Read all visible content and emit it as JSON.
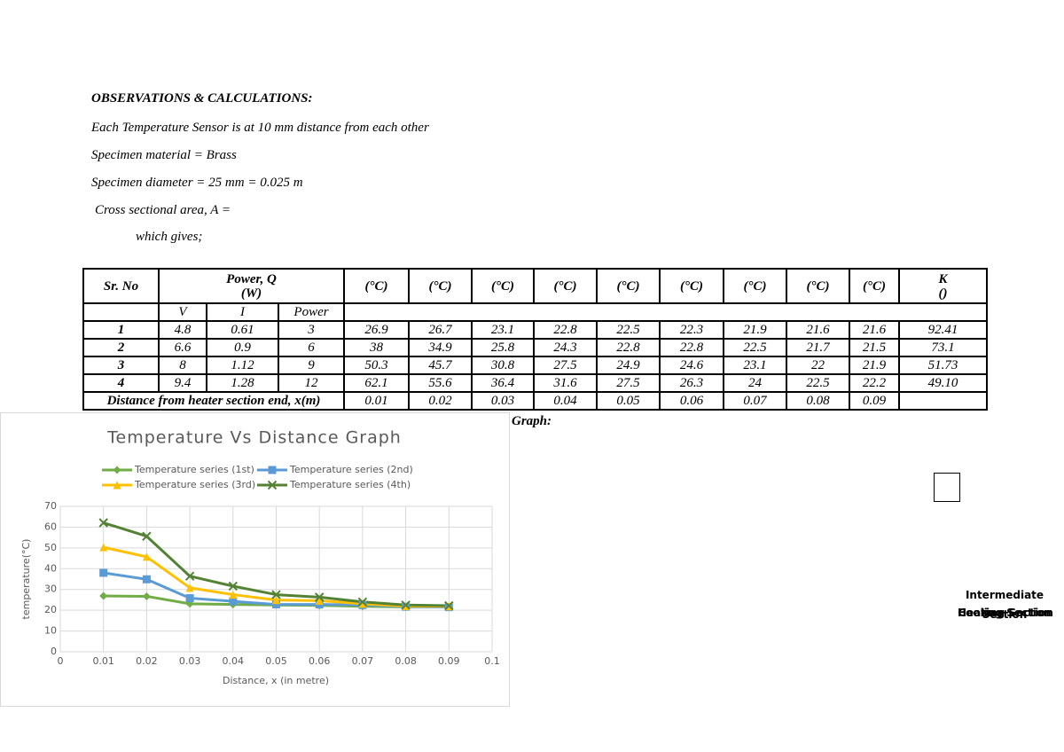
{
  "document": {
    "heading": "OBSERVATIONS & CALCULATIONS:",
    "lines": [
      "Each Temperature Sensor is at 10 mm distance from each other",
      "Specimen material = Brass",
      "Specimen diameter = 25 mm = 0.025 m",
      "Cross sectional area, A =",
      "which gives;"
    ],
    "graph_caption": "Graph:",
    "side_labels": [
      "Intermediate Section",
      "Heating Section",
      "Cooling Section"
    ]
  },
  "table": {
    "header": {
      "sr": "Sr. No",
      "power": "Power, Q",
      "power_unit": "(W)",
      "temps": [
        "(°C)",
        "(°C)",
        "(°C)",
        "(°C)",
        "(°C)",
        "(°C)",
        "(°C)",
        "(°C)",
        "(°C)"
      ],
      "k": "K",
      "k_unit": "()"
    },
    "subheader": [
      "V",
      "I",
      "Power"
    ],
    "rows": [
      [
        "1",
        "4.8",
        "0.61",
        "3",
        "26.9",
        "26.7",
        "23.1",
        "22.8",
        "22.5",
        "22.3",
        "21.9",
        "21.6",
        "21.6",
        "92.41"
      ],
      [
        "2",
        "6.6",
        "0.9",
        "6",
        "38",
        "34.9",
        "25.8",
        "24.3",
        "22.8",
        "22.8",
        "22.5",
        "21.7",
        "21.5",
        "73.1"
      ],
      [
        "3",
        "8",
        "1.12",
        "9",
        "50.3",
        "45.7",
        "30.8",
        "27.5",
        "24.9",
        "24.6",
        "23.1",
        "22",
        "21.9",
        "51.73"
      ],
      [
        "4",
        "9.4",
        "1.28",
        "12",
        "62.1",
        "55.6",
        "36.4",
        "31.6",
        "27.5",
        "26.3",
        "24",
        "22.5",
        "22.2",
        "49.10"
      ]
    ],
    "distance_row": {
      "label": "Distance from heater section end, x(m)",
      "values": [
        "0.01",
        "0.02",
        "0.03",
        "0.04",
        "0.05",
        "0.06",
        "0.07",
        "0.08",
        "0.09"
      ]
    }
  },
  "chart_data": {
    "type": "line",
    "title": "Temperature Vs Distance Graph",
    "x_label": "Distance, x (in metre)",
    "y_label": "temperature(°C)",
    "x": [
      0.01,
      0.02,
      0.03,
      0.04,
      0.05,
      0.06,
      0.07,
      0.08,
      0.09
    ],
    "series": [
      {
        "name": "Temperature series (1st)",
        "color": "#70ad47",
        "marker": "diamond",
        "values": [
          26.9,
          26.7,
          23.1,
          22.8,
          22.5,
          22.3,
          21.9,
          21.6,
          21.6
        ]
      },
      {
        "name": "Temperature series (2nd)",
        "color": "#5b9bd5",
        "marker": "square",
        "values": [
          38,
          34.9,
          25.8,
          24.3,
          22.8,
          22.8,
          22.5,
          21.7,
          21.5
        ]
      },
      {
        "name": "Temperature series (3rd)",
        "color": "#ffc000",
        "marker": "triangle",
        "values": [
          50.3,
          45.7,
          30.8,
          27.5,
          24.9,
          24.6,
          23.1,
          22,
          21.9
        ]
      },
      {
        "name": "Temperature series (4th)",
        "color": "#548235",
        "marker": "x",
        "values": [
          62.1,
          55.6,
          36.4,
          31.6,
          27.5,
          26.3,
          24,
          22.5,
          22.2
        ]
      }
    ],
    "xlim": [
      0,
      0.1
    ],
    "xticks": [
      0,
      0.01,
      0.02,
      0.03,
      0.04,
      0.05,
      0.06,
      0.07,
      0.08,
      0.09,
      0.1
    ],
    "ylim": [
      0,
      70
    ],
    "yticks": [
      0,
      10,
      20,
      30,
      40,
      50,
      60,
      70
    ],
    "grid": true,
    "legend": "top"
  }
}
